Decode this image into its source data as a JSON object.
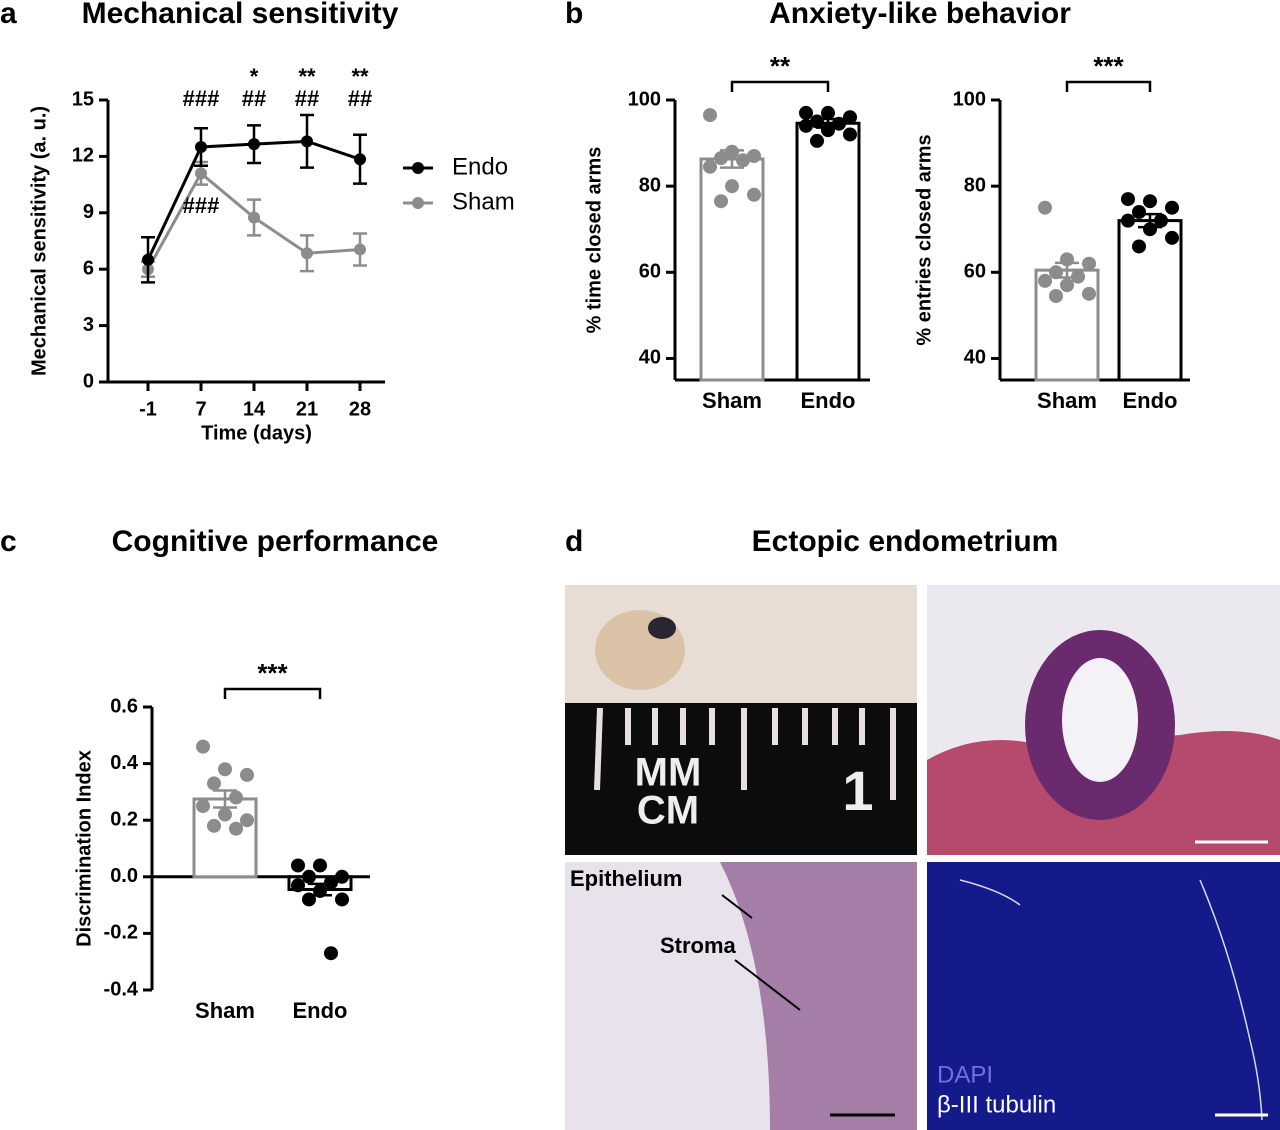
{
  "chart_data": [
    {
      "type": "line",
      "title": "Mechanical sensitivity",
      "x_label": "Time (days)",
      "y_label": "Mechanical sensitivity (a. u.)",
      "categories": [
        "-1",
        "7",
        "14",
        "21",
        "28"
      ],
      "series": [
        {
          "name": "Endo",
          "color": "#000000",
          "values": [
            6.5,
            12.5,
            12.65,
            12.8,
            11.85
          ],
          "errors": [
            1.2,
            1.0,
            1.0,
            1.4,
            1.3
          ]
        },
        {
          "name": "Sham",
          "color": "#8c8c8c",
          "values": [
            6.0,
            11.1,
            8.75,
            6.85,
            7.05
          ],
          "errors": [
            0.4,
            0.6,
            0.95,
            0.95,
            0.85
          ]
        }
      ],
      "significance_rows": [
        [
          null,
          null,
          "*",
          "**",
          "**"
        ],
        [
          null,
          "###",
          "##",
          "##",
          "##"
        ]
      ],
      "sham_significance": [
        null,
        "###",
        null,
        null,
        null
      ],
      "ylim": [
        0,
        15
      ],
      "yticks": [
        0,
        3,
        6,
        9,
        12,
        15
      ]
    },
    {
      "type": "bar",
      "y_label": "% time closed arms",
      "categories": [
        "Sham",
        "Endo"
      ],
      "values": [
        86.3,
        94.6
      ],
      "errors": [
        2.0,
        1.0
      ],
      "colors": [
        "#8c8c8c",
        "#000000"
      ],
      "points": [
        [
          96.5,
          88,
          87,
          86.5,
          86,
          84.5,
          80,
          78,
          76.5
        ],
        [
          97,
          97,
          96,
          95,
          94.5,
          94,
          93,
          92,
          90.5
        ]
      ],
      "significance": "**",
      "ylim": [
        35,
        100
      ],
      "yticks": [
        40,
        60,
        80,
        100
      ]
    },
    {
      "type": "bar",
      "y_label": "% entries closed arms",
      "categories": [
        "Sham",
        "Endo"
      ],
      "values": [
        60.5,
        72
      ],
      "errors": [
        1.7,
        1.5
      ],
      "colors": [
        "#8c8c8c",
        "#000000"
      ],
      "points": [
        [
          75,
          63,
          62,
          60,
          59,
          58,
          57,
          55,
          54.5
        ],
        [
          77,
          76.5,
          75,
          74,
          72,
          72,
          70,
          68,
          66
        ]
      ],
      "significance": "***",
      "ylim": [
        35,
        100
      ],
      "yticks": [
        40,
        60,
        80,
        100
      ]
    },
    {
      "type": "bar",
      "title": "Cognitive performance",
      "y_label": "Discrimination Index",
      "categories": [
        "Sham",
        "Endo"
      ],
      "values": [
        0.275,
        -0.045
      ],
      "errors": [
        0.03,
        0.02
      ],
      "colors": [
        "#8c8c8c",
        "#000000"
      ],
      "points": [
        [
          0.46,
          0.38,
          0.36,
          0.33,
          0.28,
          0.25,
          0.22,
          0.2,
          0.18,
          0.17
        ],
        [
          0.04,
          0.04,
          0.0,
          0.0,
          -0.02,
          -0.03,
          -0.05,
          -0.08,
          -0.08,
          -0.27
        ]
      ],
      "significance": "***",
      "ylim": [
        -0.4,
        0.6
      ],
      "yticks": [
        -0.4,
        -0.2,
        {
          "value": 0,
          "label": "0.0"
        },
        0.2,
        0.4,
        0.6
      ]
    }
  ],
  "panels": {
    "labels": [
      "a",
      "b",
      "c",
      "d"
    ],
    "b_title": "Anxiety-like behavior",
    "d_title": "Ectopic endometrium",
    "d_photo_text": [
      "MM",
      "CM",
      "1"
    ],
    "d_labels": {
      "epithelium": "Epithelium",
      "stroma": "Stroma",
      "dapi": "DAPI",
      "tubulin": "β-III tubulin"
    }
  }
}
